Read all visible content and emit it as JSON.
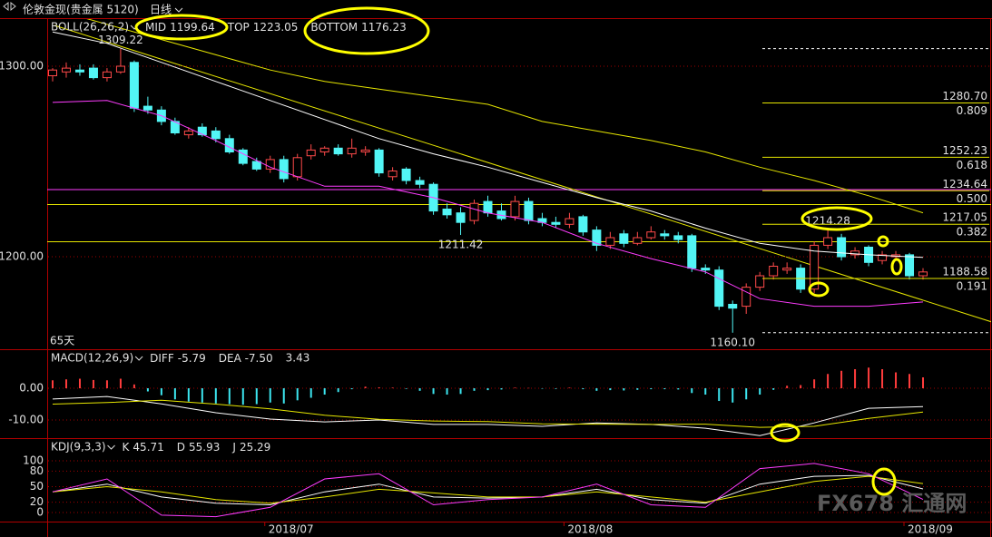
{
  "header": {
    "title": "伦敦金现(贵金属 5120)",
    "period": "日线"
  },
  "watermark": "FX678 汇通网",
  "chart_data": [
    {
      "type": "candlestick",
      "title": "BOLL(26,26,2)",
      "footnote": "65天",
      "categories": [
        null,
        null,
        null,
        null,
        null,
        null,
        null,
        null,
        null,
        null,
        null,
        null,
        null,
        null,
        null,
        null,
        "2018/07",
        null,
        null,
        null,
        null,
        null,
        null,
        null,
        null,
        null,
        null,
        null,
        null,
        null,
        null,
        null,
        null,
        null,
        null,
        null,
        null,
        null,
        "2018/08",
        null,
        null,
        null,
        null,
        null,
        null,
        null,
        null,
        null,
        null,
        null,
        null,
        null,
        null,
        null,
        null,
        null,
        null,
        null,
        null,
        null,
        null,
        null,
        null,
        "2018/09",
        null
      ],
      "open": [
        1295,
        1297,
        1298,
        1299,
        1294,
        1297,
        1302,
        1279,
        1277,
        1271,
        1264,
        1268,
        1266,
        1262,
        1256,
        1250,
        1246,
        1251,
        1242,
        1253,
        1255,
        1257,
        1254,
        1255,
        1256,
        1242,
        1246,
        1240,
        1238,
        1225,
        1223,
        1219,
        1229,
        1224,
        1221,
        1229,
        1220,
        1218,
        1217,
        1221,
        1214,
        1206,
        1212,
        1207,
        1210,
        1212,
        1211,
        1211,
        1194,
        1193,
        1175,
        1174,
        1184,
        1190,
        1193,
        1194,
        1183,
        1206,
        1210,
        1201,
        1205,
        1198,
        1200,
        1201,
        1190
      ],
      "high": [
        1299,
        1302,
        1301,
        1301,
        1299,
        1309.22,
        1303,
        1284,
        1279,
        1273,
        1268,
        1270,
        1268,
        1264,
        1257,
        1252,
        1253,
        1253,
        1254,
        1259,
        1258,
        1259,
        1262,
        1258,
        1257,
        1247,
        1247,
        1242,
        1239,
        1228,
        1226,
        1230,
        1232,
        1228,
        1232,
        1231,
        1223,
        1221,
        1223,
        1222,
        1216,
        1213,
        1214,
        1213,
        1216,
        1214,
        1213,
        1212,
        1196,
        1195,
        1177,
        1186,
        1192,
        1197,
        1197,
        1196,
        1208,
        1214.28,
        1212,
        1205,
        1206,
        1203,
        1203,
        1202,
        1194
      ],
      "low": [
        1292,
        1294,
        1295,
        1293,
        1292,
        1296,
        1276,
        1275,
        1269,
        1264,
        1262,
        1263,
        1260,
        1254,
        1248,
        1245,
        1244,
        1239,
        1240,
        1251,
        1253,
        1253,
        1252,
        1253,
        1242,
        1240,
        1238,
        1236,
        1222,
        1220,
        1211.42,
        1217,
        1221,
        1219,
        1219,
        1217,
        1216,
        1215,
        1215,
        1211,
        1203,
        1204,
        1205,
        1206,
        1209,
        1209,
        1207,
        1192,
        1191,
        1172,
        1160.1,
        1170,
        1182,
        1188,
        1191,
        1181,
        1181,
        1204,
        1198,
        1199,
        1195,
        1196,
        1198,
        1188,
        1188
      ],
      "close": [
        1298,
        1299,
        1297,
        1294,
        1297,
        1300,
        1278,
        1277,
        1271,
        1265,
        1266,
        1264,
        1262,
        1255,
        1249,
        1246,
        1251,
        1241,
        1252,
        1256,
        1257,
        1254,
        1257,
        1256,
        1244,
        1245,
        1240,
        1238,
        1224,
        1222,
        1218,
        1228,
        1223,
        1220,
        1229,
        1219,
        1218,
        1217,
        1220,
        1213,
        1206,
        1210,
        1207,
        1210,
        1213,
        1211,
        1209,
        1194,
        1193,
        1174,
        1173,
        1184,
        1190,
        1195,
        1194,
        1183,
        1206,
        1210,
        1200,
        1203,
        1197,
        1201,
        1201,
        1190,
        1192
      ],
      "up_color": "#ff4a4a",
      "down_color": "#52f5f5",
      "ylim": [
        1151.43,
        1325.24
      ],
      "yticks": [
        {
          "value": 1200,
          "label": "1200.00"
        },
        {
          "value": 1300,
          "label": "1300.00"
        }
      ],
      "series": [
        {
          "name": "MID",
          "color": "#ffffff",
          "x": [
            0,
            4,
            8,
            12,
            16,
            20,
            24,
            28,
            32,
            36,
            40,
            44,
            48,
            52,
            56,
            60,
            64
          ],
          "values": [
            1318,
            1312,
            1302,
            1292,
            1282,
            1272,
            1262,
            1254,
            1247,
            1239,
            1231,
            1224,
            1215,
            1207,
            1203,
            1201,
            1199.64
          ]
        },
        {
          "name": "TOP",
          "color": "#e6e600",
          "x": [
            0,
            4,
            8,
            12,
            16,
            20,
            24,
            28,
            32,
            36,
            40,
            44,
            48,
            52,
            56,
            60,
            64
          ],
          "values": [
            1330,
            1322,
            1314,
            1306,
            1298,
            1292,
            1288,
            1284,
            1280,
            1271,
            1266,
            1261,
            1255,
            1247,
            1240,
            1232,
            1223.05
          ]
        },
        {
          "name": "BOTTOM",
          "color": "#ff3cff",
          "x": [
            0,
            4,
            8,
            12,
            16,
            20,
            24,
            28,
            32,
            36,
            40,
            44,
            48,
            52,
            56,
            60,
            64
          ],
          "values": [
            1281,
            1282,
            1274,
            1261,
            1247,
            1237,
            1237,
            1231,
            1223,
            1218,
            1207,
            1199,
            1192,
            1178,
            1174,
            1174,
            1176.23
          ]
        }
      ],
      "annotations": [
        {
          "value": 1309.22,
          "label": "1309.22"
        },
        {
          "value": 1211.42,
          "label": "1211.42"
        },
        {
          "value": 1160.1,
          "label": "1160.10"
        },
        {
          "value": 1214.28,
          "label": "1214.28"
        }
      ],
      "fib_levels": [
        {
          "price": {
            "value": 1280.7,
            "label": "1280.70"
          },
          "ratio": 0.809
        },
        {
          "price": 1252.23,
          "ratio": 0.618
        },
        {
          "price": 1234.64,
          "ratio": {
            "value": 0.5,
            "label": "0.500"
          }
        },
        {
          "price": 1217.05,
          "ratio": 0.382
        },
        {
          "price": 1188.58,
          "ratio": 0.191
        }
      ]
    },
    {
      "type": "bar",
      "title": "MACD(12,26,9)",
      "values": [
        2.5,
        2.8,
        3,
        2.6,
        2.5,
        3,
        1.2,
        -1,
        -2.2,
        -3.5,
        -4.2,
        -4.5,
        -4.8,
        -5,
        -5.2,
        -5,
        -4.5,
        -4.8,
        -3.8,
        -3,
        -2,
        -1.2,
        -0.3,
        0.5,
        0.3,
        0.2,
        -0.2,
        -0.8,
        -1.8,
        -2,
        -1.8,
        -0.8,
        -0.6,
        -0.4,
        0.2,
        0.1,
        -0.1,
        -0.2,
        0.2,
        -0.3,
        -0.8,
        -0.6,
        -0.7,
        -0.5,
        -0.3,
        -0.3,
        -0.4,
        -1.5,
        -2,
        -4,
        -4.5,
        -3.5,
        -2,
        -0.5,
        0.8,
        1,
        2.8,
        4.5,
        5.5,
        6,
        6.5,
        6,
        5,
        4.5,
        3.43
      ],
      "up_color": "#ff3c3c",
      "down_color": "#3ce6f0",
      "ylim": [
        -15.71,
        12.29
      ],
      "yticks": [
        {
          "value": 0,
          "label": "0.00"
        },
        {
          "value": -10,
          "label": "-10.00"
        }
      ],
      "series": [
        {
          "name": "DIFF",
          "color": "#ffffff",
          "x": [
            0,
            4,
            8,
            12,
            16,
            20,
            24,
            28,
            32,
            36,
            40,
            44,
            48,
            52,
            56,
            60,
            64
          ],
          "values": [
            -3.4,
            -2.6,
            -4.9,
            -7.7,
            -9.7,
            -10.6,
            -10,
            -11.4,
            -11.4,
            -12,
            -10.9,
            -11.4,
            -12.6,
            -14.9,
            -10.9,
            -6.3,
            -5.79
          ]
        },
        {
          "name": "DEA",
          "color": "#e6e600",
          "x": [
            0,
            4,
            8,
            12,
            16,
            20,
            24,
            28,
            32,
            36,
            40,
            44,
            48,
            52,
            56,
            60,
            64
          ],
          "values": [
            -5,
            -4.5,
            -3.8,
            -5,
            -6.5,
            -8.5,
            -9.8,
            -10.3,
            -10.5,
            -11.2,
            -11.3,
            -11.4,
            -11.3,
            -12.3,
            -12,
            -9.5,
            -7.5
          ],
          "value_labels": [
            null,
            null,
            null,
            null,
            null,
            null,
            null,
            null,
            null,
            null,
            null,
            null,
            null,
            null,
            null,
            null,
            "-7.50"
          ]
        }
      ]
    },
    {
      "type": "line",
      "title": "KDJ(9,3,3)",
      "ylim": [
        -17.5,
        143.9
      ],
      "yticks": [
        0,
        20,
        50,
        80,
        100
      ],
      "series": [
        {
          "name": "K",
          "color": "#ffffff",
          "x": [
            0,
            4,
            8,
            12,
            16,
            20,
            24,
            28,
            32,
            36,
            40,
            44,
            48,
            52,
            56,
            60,
            64
          ],
          "values": [
            40,
            55,
            30,
            18,
            15,
            40,
            55,
            30,
            28,
            30,
            45,
            25,
            18,
            55,
            70,
            72,
            45.71
          ]
        },
        {
          "name": "D",
          "color": "#e6e600",
          "x": [
            0,
            4,
            8,
            12,
            16,
            20,
            24,
            28,
            32,
            36,
            40,
            44,
            48,
            52,
            56,
            60,
            64
          ],
          "values": [
            40,
            50,
            40,
            25,
            18,
            30,
            45,
            38,
            30,
            30,
            40,
            30,
            20,
            40,
            60,
            70,
            55.93
          ]
        },
        {
          "name": "J",
          "color": "#ff3cff",
          "x": [
            0,
            4,
            8,
            12,
            16,
            20,
            24,
            28,
            32,
            36,
            40,
            44,
            48,
            52,
            56,
            60,
            64
          ],
          "values": [
            40,
            65,
            -5,
            -8,
            10,
            65,
            75,
            15,
            25,
            30,
            55,
            15,
            10,
            85,
            95,
            75,
            25.29
          ]
        }
      ]
    }
  ]
}
